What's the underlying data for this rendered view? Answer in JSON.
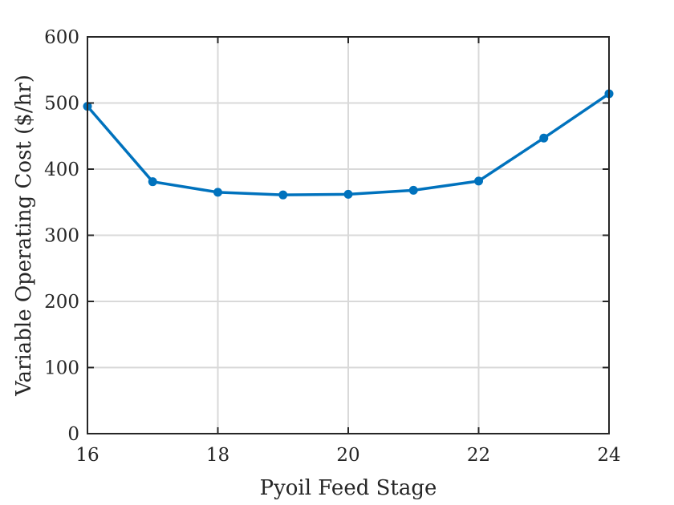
{
  "chart_data": {
    "type": "line",
    "title": "",
    "xlabel": "Pyoil Feed Stage",
    "ylabel": "Variable Operating Cost ($/hr)",
    "xlim": [
      16,
      24
    ],
    "ylim": [
      0,
      600
    ],
    "xticks": [
      16,
      18,
      20,
      22,
      24
    ],
    "yticks": [
      0,
      100,
      200,
      300,
      400,
      500,
      600
    ],
    "grid": true,
    "series": [
      {
        "x": [
          16,
          17,
          18,
          19,
          20,
          21,
          22,
          23,
          24
        ],
        "y": [
          495,
          381,
          365,
          361,
          362,
          368,
          382,
          447,
          514
        ],
        "color": "#0072BD",
        "marker": "circle"
      }
    ]
  }
}
